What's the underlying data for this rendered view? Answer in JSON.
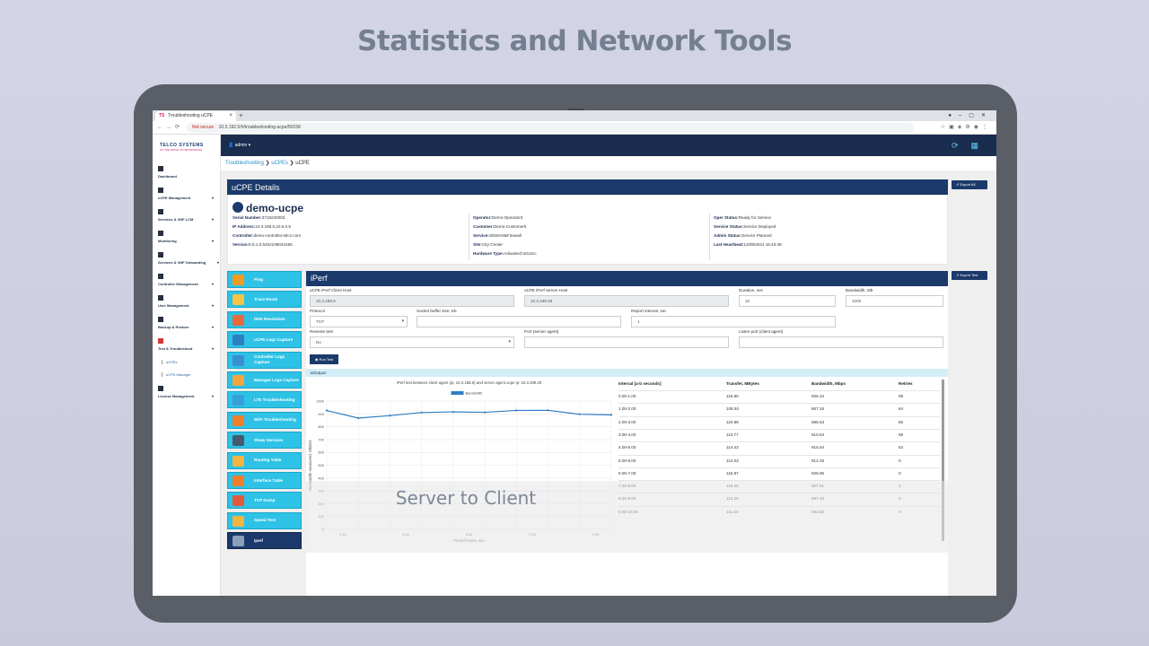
{
  "headline": "Statistics and Network Tools",
  "browser": {
    "tab_title": "Troubleshooting uCPE",
    "tab_favicon": "TS",
    "url_warning": "Not secure",
    "url": "10.3.192.5/#/troubleshooting-ucpe/50158"
  },
  "app": {
    "logo": "TELCO SYSTEMS",
    "logo_tagline": "ON THE EDGE OF NETWORKING",
    "user": "admin",
    "nav": [
      {
        "label": "Dashboard"
      },
      {
        "label": "uCPE Management"
      },
      {
        "label": "Services & VNF LCM"
      },
      {
        "label": "Monitoring"
      },
      {
        "label": "Services & VNF Onboarding"
      },
      {
        "label": "Controller Management"
      },
      {
        "label": "User Management"
      },
      {
        "label": "Backup & Restore"
      },
      {
        "label": "Test & Troubleshoot"
      },
      {
        "label": "License Management"
      }
    ],
    "subnav": [
      "uCPEs",
      "uCPE Manager"
    ],
    "breadcrumb": [
      "Troubleshooting",
      "uCPEs",
      "uCPE"
    ]
  },
  "details": {
    "header": "uCPE Details",
    "export_all": "Export All",
    "device_name": "demo-ucpe",
    "col1": [
      {
        "k": "Serial Number:",
        "v": "3719220003"
      },
      {
        "k": "IP Address:",
        "v": "10.3.188.6,10.6.0.5"
      },
      {
        "k": "Controller:",
        "v": "demo-controller.telco.com"
      },
      {
        "k": "Version:",
        "v": "8.6.1.0.b202108041555"
      }
    ],
    "col2": [
      {
        "k": "Operator:",
        "v": "Demo-Operator3"
      },
      {
        "k": "Customer:",
        "v": "Demo-Customer5"
      },
      {
        "k": "Service:",
        "v": "SDWAN&Firewall"
      },
      {
        "k": "Site:",
        "v": "City Center"
      },
      {
        "k": "Hardware Type:",
        "v": "Advantech1012vc"
      }
    ],
    "col3": [
      {
        "k": "Oper Status:",
        "v": "Ready for Service"
      },
      {
        "k": "Service Status:",
        "v": "Service Deployed"
      },
      {
        "k": "Admin Status:",
        "v": "Service Planned"
      },
      {
        "k": "Last Heartbeat:",
        "v": "13/08/2021 16:43:49"
      }
    ]
  },
  "tools": [
    {
      "label": "Ping",
      "icon": "ping-icon",
      "color": "#f29b1e"
    },
    {
      "label": "Trace Route",
      "icon": "trace-route-icon",
      "color": "#f5c445"
    },
    {
      "label": "DNS Resolution",
      "icon": "dns-icon",
      "color": "#e86a3a"
    },
    {
      "label": "uCPE Logs Capture",
      "icon": "logs-icon",
      "color": "#2a7fc1"
    },
    {
      "label": "Controller Logs Capture",
      "icon": "controller-logs-icon",
      "color": "#3b8ed2"
    },
    {
      "label": "Manager Logs Capture",
      "icon": "manager-logs-icon",
      "color": "#f2a63c"
    },
    {
      "label": "LTE Troubleshooting",
      "icon": "lte-icon",
      "color": "#38a0d8"
    },
    {
      "label": "WiFi Troubleshooting",
      "icon": "wifi-icon",
      "color": "#f07d2b"
    },
    {
      "label": "Show Services",
      "icon": "gear-icon",
      "color": "#455a70"
    },
    {
      "label": "Routing Table",
      "icon": "routing-icon",
      "color": "#f2b541"
    },
    {
      "label": "Interface Table",
      "icon": "interface-icon",
      "color": "#f07d2b"
    },
    {
      "label": "TCP Dump",
      "icon": "tcp-dump-icon",
      "color": "#e25a3b"
    },
    {
      "label": "Speed Test",
      "icon": "speedometer-icon",
      "color": "#f2b541"
    },
    {
      "label": "iperf",
      "icon": "gear-icon",
      "color": "#8aa0b8"
    }
  ],
  "iperf": {
    "header": "iPerf",
    "export_test": "Export Test",
    "client_host_label": "uCPE iPerf Client Host",
    "client_host_value": "10.3.188.6",
    "server_host_label": "uCPE iPerf Server Host",
    "server_host_value": "10.3.199.29",
    "duration_label": "Duration, sec",
    "duration_value": "10",
    "bandwidth_label": "Bandwidth, Mb",
    "bandwidth_value": "1000",
    "protocol_label": "Protocol",
    "protocol_value": "TCP",
    "socket_label": "Socket buffer size, Kb",
    "report_label": "Report interval, sec",
    "report_value": "1",
    "reverse_label": "Reverse test",
    "reverse_value": "No",
    "port_server_label": "Port (server agent)",
    "listen_port_label": "Listen port (client agent)",
    "run_test": "Run Test",
    "output_label": "Output:",
    "overlay_caption": "Server to Client",
    "table_headers": [
      "Interval [a-b seconds]",
      "Transfer, MBytes",
      "Bandwidth, Mbps",
      "Retries"
    ],
    "table_rows": [
      [
        "0.00-1.00",
        "115.80",
        "926.34",
        "99"
      ],
      [
        "1.00-2.00",
        "108.40",
        "867.15",
        "64"
      ],
      [
        "2.00-3.00",
        "110.89",
        "886.63",
        "86"
      ],
      [
        "3.00-4.00",
        "113.77",
        "910.54",
        "68"
      ],
      [
        "4.00-5.00",
        "114.43",
        "915.54",
        "53"
      ],
      [
        "5.00-6.00",
        "114.03",
        "912.25",
        "0"
      ],
      [
        "6.00-7.00",
        "115.87",
        "926.96",
        "0"
      ],
      [
        "7.00-8.00",
        "116.00",
        "927.91",
        "0"
      ],
      [
        "8.00-9.00",
        "112.20",
        "897.42",
        "0"
      ],
      [
        "9.00-10.00",
        "111.54",
        "892.52",
        "0"
      ]
    ]
  },
  "chart_data": {
    "type": "line",
    "title": "iPerf test between client agent (ip: 10.3.188.6) and server agent ucpe ip: 10.3.199.29",
    "xlabel": "Period Points, sec",
    "ylabel": "Bandwidth measured, Mbits/s",
    "x": [
      0.5,
      1.5,
      2.5,
      3.5,
      4.5,
      5.5,
      6.5,
      7.5,
      8.5,
      9.5
    ],
    "x_ticks": [
      "1.00",
      "3.00",
      "5.00",
      "7.00",
      "9.00"
    ],
    "y_ticks": [
      0,
      100,
      200,
      300,
      400,
      500,
      600,
      700,
      800,
      900,
      1000
    ],
    "ylim": [
      0,
      1000
    ],
    "series": [
      {
        "name": "Bandwidth",
        "values": [
          926.34,
          867.15,
          886.63,
          910.54,
          915.54,
          912.25,
          926.96,
          927.91,
          897.42,
          892.52
        ],
        "color": "#2f7ec4"
      }
    ],
    "grid": true,
    "legend": "top-center"
  }
}
